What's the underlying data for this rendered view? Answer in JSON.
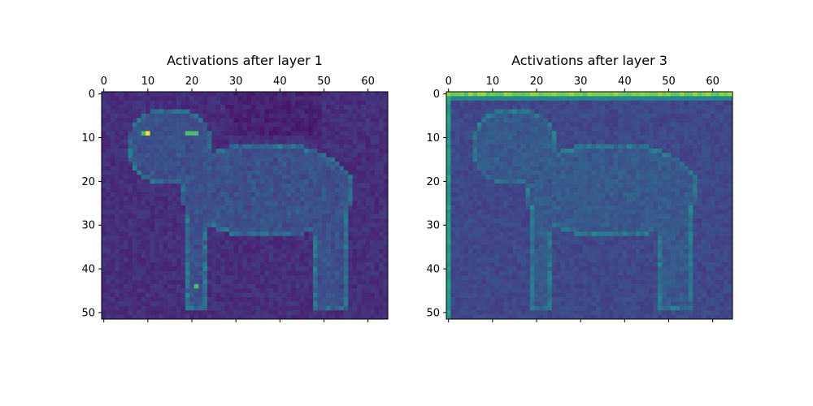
{
  "chart_data": [
    {
      "type": "heatmap",
      "title": "Activations after layer 1",
      "xlabel": "",
      "ylabel": "",
      "grid_size": {
        "cols": 65,
        "rows": 52
      },
      "xlim": [
        0,
        64
      ],
      "ylim": [
        51,
        0
      ],
      "x_ticks": [
        "0",
        "10",
        "20",
        "30",
        "40",
        "50",
        "60"
      ],
      "y_ticks": [
        "0",
        "10",
        "20",
        "30",
        "40",
        "50"
      ],
      "colormap": "viridis",
      "value_range": "low (dark purple) to high (yellow)",
      "grid": false,
      "notable_cells": [
        {
          "x": 10,
          "y": 9,
          "value": "max (yellow)"
        },
        {
          "x": 19,
          "y": 9,
          "value": "high (green)"
        },
        {
          "x": 20,
          "y": 9,
          "value": "high (green)"
        },
        {
          "x": 21,
          "y": 9,
          "value": "high (green)"
        },
        {
          "x": 9,
          "y": 9,
          "value": "high (green)"
        },
        {
          "x": 21,
          "y": 44,
          "value": "high (green)"
        }
      ]
    },
    {
      "type": "heatmap",
      "title": "Activations after layer 3",
      "xlabel": "",
      "ylabel": "",
      "grid_size": {
        "cols": 65,
        "rows": 52
      },
      "xlim": [
        0,
        64
      ],
      "ylim": [
        51,
        0
      ],
      "x_ticks": [
        "0",
        "10",
        "20",
        "30",
        "40",
        "50",
        "60"
      ],
      "y_ticks": [
        "0",
        "10",
        "20",
        "30",
        "40",
        "50"
      ],
      "colormap": "viridis",
      "value_range": "low (dark purple) to high (yellow)",
      "grid": false,
      "notable_cells": [
        {
          "row": 0,
          "value": "high (yellow-green) across full top row"
        },
        {
          "col": 0,
          "value": "high (green) along left column"
        }
      ]
    }
  ],
  "colors": {
    "viridis_low": "#440154",
    "viridis_mid": "#21918c",
    "viridis_high": "#fde725"
  }
}
